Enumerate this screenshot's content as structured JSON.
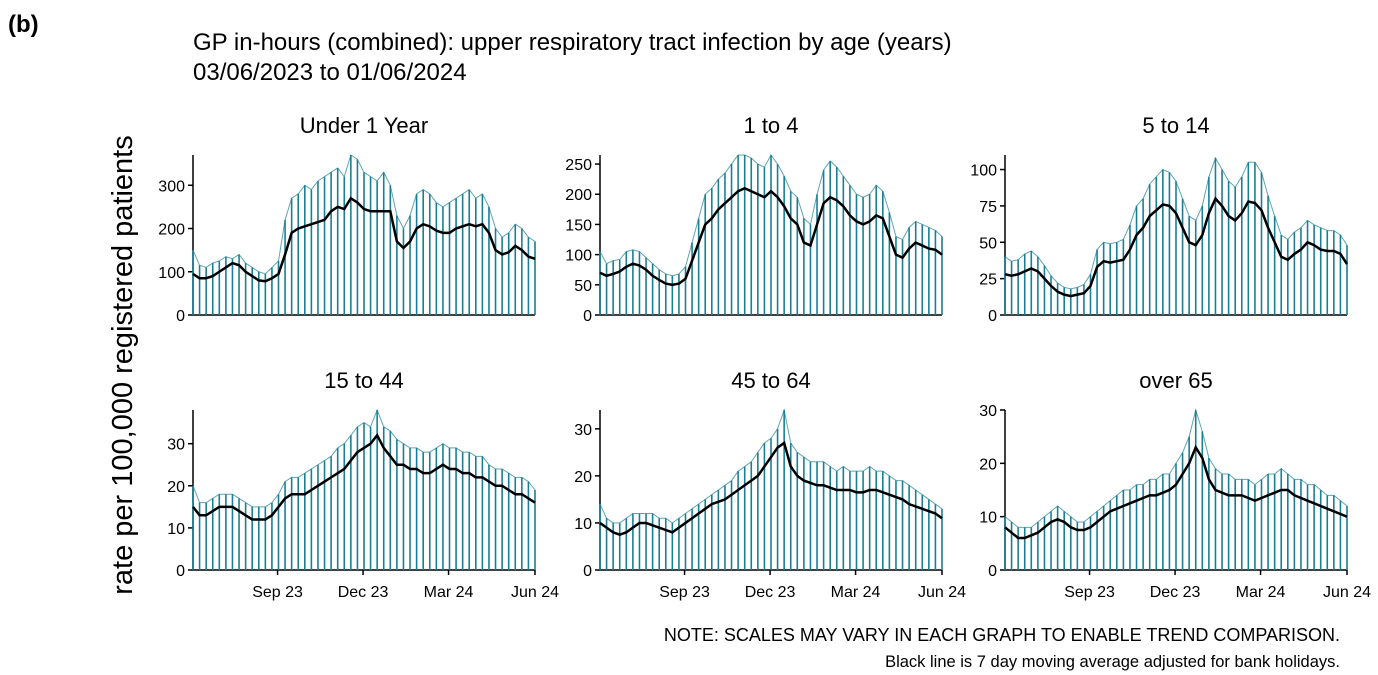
{
  "label": "(b)",
  "chart_data": {
    "type": "line",
    "title": "GP in-hours (combined): upper respiratory tract infection by age (years)",
    "subtitle": "03/06/2023 to 01/06/2024",
    "y_label": "rate per 100,000 registered patients",
    "notes": [
      "NOTE: SCALES MAY VARY IN EACH GRAPH TO ENABLE TREND COMPARISON.",
      "Black line is 7 day moving average adjusted for bank holidays."
    ],
    "x": [
      "2023-06-03",
      "2023-06-10",
      "2023-06-17",
      "2023-06-24",
      "2023-07-01",
      "2023-07-08",
      "2023-07-15",
      "2023-07-22",
      "2023-07-29",
      "2023-08-05",
      "2023-08-12",
      "2023-08-19",
      "2023-08-26",
      "2023-09-02",
      "2023-09-09",
      "2023-09-16",
      "2023-09-23",
      "2023-09-30",
      "2023-10-07",
      "2023-10-14",
      "2023-10-21",
      "2023-10-28",
      "2023-11-04",
      "2023-11-11",
      "2023-11-18",
      "2023-11-25",
      "2023-12-02",
      "2023-12-09",
      "2023-12-16",
      "2023-12-23",
      "2023-12-30",
      "2024-01-06",
      "2024-01-13",
      "2024-01-20",
      "2024-01-27",
      "2024-02-03",
      "2024-02-10",
      "2024-02-17",
      "2024-02-24",
      "2024-03-02",
      "2024-03-09",
      "2024-03-16",
      "2024-03-23",
      "2024-03-30",
      "2024-04-06",
      "2024-04-13",
      "2024-04-20",
      "2024-04-27",
      "2024-05-04",
      "2024-05-11",
      "2024-05-18",
      "2024-05-25",
      "2024-06-01"
    ],
    "xlim": [
      "2023-06-03",
      "2024-06-01"
    ],
    "xticks": [
      {
        "value": "2023-09-01",
        "label": "Sep 23"
      },
      {
        "value": "2023-12-01",
        "label": "Dec 23"
      },
      {
        "value": "2024-03-01",
        "label": "Mar 24"
      },
      {
        "value": "2024-06-01",
        "label": "Jun 24"
      }
    ],
    "facets": [
      {
        "title": "Under 1 Year",
        "ylim": [
          0,
          370
        ],
        "yticks": [
          0,
          100,
          200,
          300
        ],
        "series": [
          {
            "color": "#1b7f94",
            "values": [
              150,
              115,
              110,
              120,
              125,
              135,
              130,
              140,
              120,
              110,
              100,
              95,
              110,
              125,
              220,
              270,
              280,
              300,
              290,
              310,
              320,
              330,
              340,
              320,
              370,
              360,
              330,
              320,
              310,
              330,
              300,
              230,
              200,
              230,
              280,
              290,
              280,
              260,
              250,
              260,
              270,
              280,
              290,
              270,
              280,
              250,
              200,
              180,
              190,
              210,
              200,
              180,
              170
            ]
          },
          {
            "color": "#000000",
            "values": [
              95,
              85,
              85,
              90,
              100,
              110,
              120,
              115,
              100,
              90,
              80,
              78,
              85,
              95,
              140,
              190,
              200,
              205,
              210,
              215,
              220,
              240,
              250,
              245,
              270,
              260,
              245,
              240,
              240,
              240,
              240,
              170,
              155,
              170,
              200,
              210,
              205,
              195,
              190,
              190,
              200,
              205,
              210,
              205,
              210,
              190,
              150,
              140,
              145,
              160,
              150,
              135,
              130
            ]
          }
        ]
      },
      {
        "title": "1 to 4",
        "ylim": [
          0,
          265
        ],
        "yticks": [
          0,
          50,
          100,
          150,
          200,
          250
        ],
        "series": [
          {
            "color": "#1b7f94",
            "values": [
              105,
              85,
              90,
              92,
              105,
              108,
              105,
              95,
              85,
              75,
              68,
              65,
              68,
              80,
              120,
              160,
              200,
              210,
              225,
              235,
              250,
              265,
              265,
              260,
              250,
              245,
              265,
              250,
              230,
              205,
              195,
              160,
              150,
              200,
              240,
              255,
              245,
              230,
              215,
              200,
              195,
              200,
              215,
              205,
              170,
              130,
              125,
              145,
              155,
              150,
              145,
              140,
              130
            ]
          },
          {
            "color": "#000000",
            "values": [
              70,
              65,
              68,
              72,
              80,
              85,
              82,
              75,
              65,
              58,
              52,
              50,
              52,
              60,
              90,
              120,
              150,
              160,
              175,
              185,
              195,
              205,
              210,
              205,
              200,
              195,
              205,
              195,
              180,
              160,
              150,
              120,
              115,
              150,
              185,
              195,
              190,
              180,
              165,
              155,
              150,
              155,
              165,
              160,
              130,
              100,
              95,
              110,
              120,
              115,
              110,
              108,
              100
            ]
          }
        ]
      },
      {
        "title": "5 to 14",
        "ylim": [
          0,
          110
        ],
        "yticks": [
          0,
          25,
          50,
          75,
          100
        ],
        "series": [
          {
            "color": "#1b7f94",
            "values": [
              40,
              37,
              38,
              42,
              44,
              40,
              34,
              27,
              22,
              19,
              18,
              19,
              21,
              28,
              45,
              50,
              49,
              50,
              52,
              62,
              75,
              80,
              90,
              95,
              100,
              98,
              92,
              80,
              68,
              65,
              75,
              95,
              108,
              100,
              92,
              88,
              95,
              105,
              105,
              98,
              82,
              68,
              55,
              52,
              57,
              60,
              65,
              62,
              60,
              58,
              58,
              55,
              48
            ]
          },
          {
            "color": "#000000",
            "values": [
              28,
              27,
              28,
              30,
              32,
              30,
              25,
              20,
              16,
              14,
              13,
              14,
              15,
              20,
              33,
              37,
              36,
              37,
              38,
              45,
              55,
              60,
              68,
              72,
              76,
              75,
              70,
              60,
              50,
              48,
              55,
              70,
              80,
              75,
              68,
              65,
              70,
              78,
              77,
              72,
              60,
              50,
              40,
              38,
              42,
              45,
              50,
              48,
              45,
              44,
              44,
              42,
              35
            ]
          }
        ]
      },
      {
        "title": "15 to 44",
        "ylim": [
          0,
          38
        ],
        "yticks": [
          0,
          10,
          20,
          30
        ],
        "series": [
          {
            "color": "#1b7f94",
            "values": [
              20,
              16,
              16,
              17,
              18,
              18,
              18,
              17,
              16,
              15,
              15,
              15,
              16,
              18,
              21,
              22,
              22,
              23,
              24,
              25,
              26,
              27,
              29,
              30,
              32,
              34,
              35,
              34,
              38,
              34,
              33,
              31,
              30,
              29,
              29,
              28,
              28,
              29,
              30,
              29,
              29,
              28,
              28,
              27,
              27,
              25,
              24,
              24,
              23,
              22,
              22,
              21,
              19
            ]
          },
          {
            "color": "#000000",
            "values": [
              15,
              13,
              13,
              14,
              15,
              15,
              15,
              14,
              13,
              12,
              12,
              12,
              13,
              15,
              17,
              18,
              18,
              18,
              19,
              20,
              21,
              22,
              23,
              24,
              26,
              28,
              29,
              30,
              32,
              29,
              27,
              25,
              25,
              24,
              24,
              23,
              23,
              24,
              25,
              24,
              24,
              23,
              23,
              22,
              22,
              21,
              20,
              20,
              19,
              18,
              18,
              17,
              16
            ]
          }
        ]
      },
      {
        "title": "45 to 64",
        "ylim": [
          0,
          34
        ],
        "yticks": [
          0,
          10,
          20,
          30
        ],
        "series": [
          {
            "color": "#1b7f94",
            "values": [
              14,
              11,
              10,
              10,
              11,
              12,
              12,
              12,
              12,
              11,
              11,
              10,
              11,
              12,
              13,
              14,
              15,
              16,
              17,
              18,
              19,
              21,
              22,
              23,
              25,
              27,
              28,
              30,
              34,
              27,
              25,
              24,
              23,
              23,
              23,
              22,
              21,
              22,
              21,
              21,
              21,
              22,
              21,
              21,
              20,
              19,
              19,
              18,
              17,
              16,
              15,
              14,
              13
            ]
          },
          {
            "color": "#000000",
            "values": [
              10,
              9,
              8,
              7.5,
              8,
              9,
              10,
              10,
              9.5,
              9,
              8.5,
              8,
              9,
              10,
              11,
              12,
              13,
              14,
              14.5,
              15,
              16,
              17,
              18,
              19,
              20,
              22,
              24,
              26,
              27,
              22,
              20,
              19,
              18.5,
              18,
              18,
              17.5,
              17,
              17,
              17,
              16.5,
              16.5,
              17,
              17,
              16.5,
              16,
              15.5,
              15,
              14,
              13.5,
              13,
              12.5,
              12,
              11
            ]
          }
        ]
      },
      {
        "title": "over 65",
        "ylim": [
          0,
          30
        ],
        "yticks": [
          0,
          10,
          20,
          30
        ],
        "series": [
          {
            "color": "#1b7f94",
            "values": [
              10,
              9,
              8,
              8,
              8,
              9,
              10,
              11,
              12,
              11,
              10,
              9,
              9,
              10,
              11,
              12,
              13,
              14,
              15,
              15,
              16,
              16,
              17,
              17,
              18,
              18,
              20,
              22,
              25,
              30,
              26,
              21,
              19,
              18,
              18,
              17,
              17,
              17,
              16,
              17,
              18,
              18,
              19,
              18,
              17,
              17,
              16,
              16,
              15,
              14,
              14,
              13,
              12
            ]
          },
          {
            "color": "#000000",
            "values": [
              8,
              7,
              6,
              6,
              6.5,
              7,
              8,
              9,
              9.5,
              9,
              8,
              7.5,
              7.5,
              8,
              9,
              10,
              11,
              11.5,
              12,
              12.5,
              13,
              13.5,
              14,
              14,
              14.5,
              15,
              16,
              18,
              20,
              23,
              21,
              17,
              15,
              14.5,
              14,
              14,
              14,
              13.5,
              13,
              13.5,
              14,
              14.5,
              15,
              15,
              14,
              13.5,
              13,
              12.5,
              12,
              11.5,
              11,
              10.5,
              10
            ]
          }
        ]
      }
    ]
  }
}
